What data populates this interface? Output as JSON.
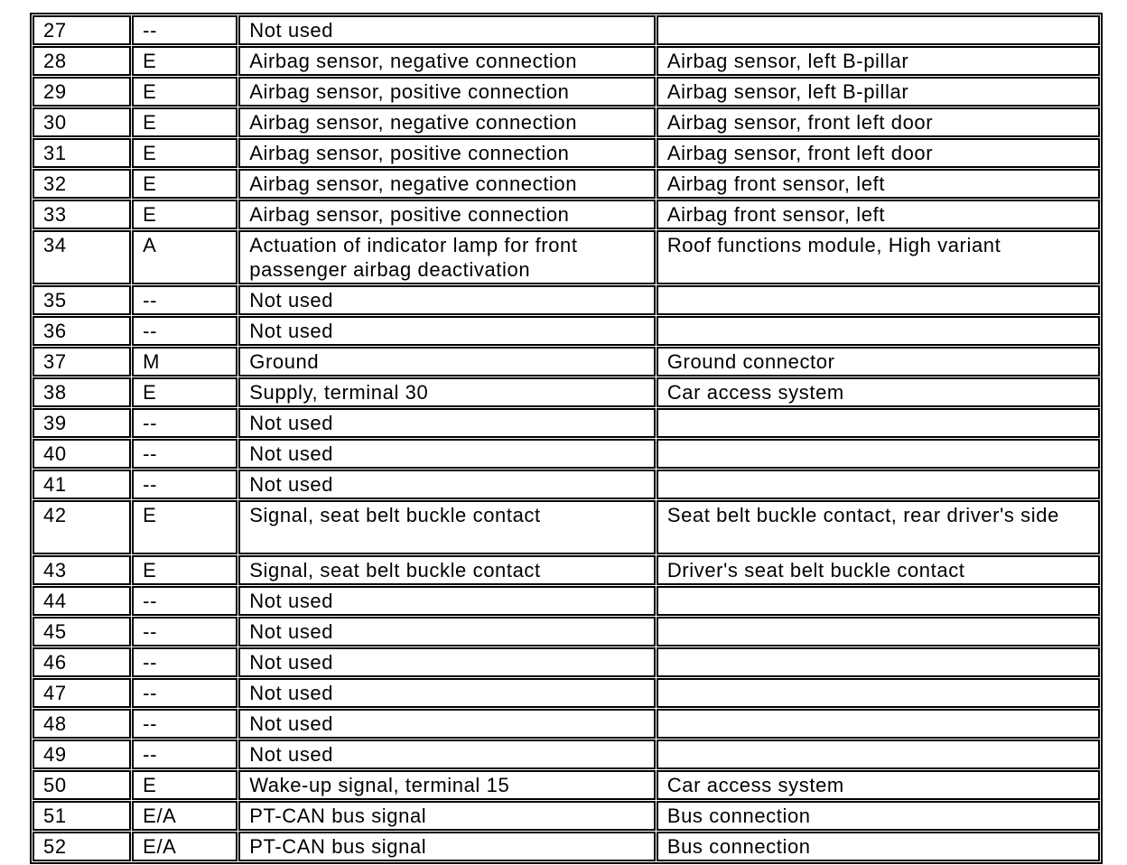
{
  "table": {
    "columns": [
      "pin",
      "type",
      "description",
      "component"
    ],
    "rows": [
      {
        "pin": "27",
        "type": "--",
        "description": "Not used",
        "component": "",
        "tall": false
      },
      {
        "pin": "28",
        "type": "E",
        "description": "Airbag sensor, negative connection",
        "component": "Airbag sensor, left B-pillar",
        "tall": false
      },
      {
        "pin": "29",
        "type": "E",
        "description": "Airbag sensor, positive connection",
        "component": "Airbag sensor, left B-pillar",
        "tall": false
      },
      {
        "pin": "30",
        "type": "E",
        "description": "Airbag sensor, negative connection",
        "component": "Airbag sensor, front left door",
        "tall": false
      },
      {
        "pin": "31",
        "type": "E",
        "description": "Airbag sensor, positive connection",
        "component": "Airbag sensor, front left door",
        "tall": false
      },
      {
        "pin": "32",
        "type": "E",
        "description": "Airbag sensor, negative connection",
        "component": "Airbag front sensor, left",
        "tall": false
      },
      {
        "pin": "33",
        "type": "E",
        "description": "Airbag sensor, positive connection",
        "component": "Airbag front sensor, left",
        "tall": false
      },
      {
        "pin": "34",
        "type": "A",
        "description": "Actuation of indicator lamp for front passenger airbag deactivation",
        "component": "Roof functions module, High variant",
        "tall": true
      },
      {
        "pin": "35",
        "type": "--",
        "description": "Not used",
        "component": "",
        "tall": false
      },
      {
        "pin": "36",
        "type": "--",
        "description": "Not used",
        "component": "",
        "tall": false
      },
      {
        "pin": "37",
        "type": "M",
        "description": "Ground",
        "component": "Ground connector",
        "tall": false
      },
      {
        "pin": "38",
        "type": "E",
        "description": "Supply, terminal 30",
        "component": "Car access system",
        "tall": false
      },
      {
        "pin": "39",
        "type": "--",
        "description": "Not used",
        "component": "",
        "tall": false
      },
      {
        "pin": "40",
        "type": "--",
        "description": "Not used",
        "component": "",
        "tall": false
      },
      {
        "pin": "41",
        "type": "--",
        "description": "Not used",
        "component": "",
        "tall": false
      },
      {
        "pin": "42",
        "type": "E",
        "description": "Signal, seat belt buckle contact",
        "component": "Seat belt buckle contact, rear driver's side",
        "tall": true
      },
      {
        "pin": "43",
        "type": "E",
        "description": "Signal, seat belt buckle contact",
        "component": "Driver's seat belt buckle contact",
        "tall": false
      },
      {
        "pin": "44",
        "type": "--",
        "description": "Not used",
        "component": "",
        "tall": false
      },
      {
        "pin": "45",
        "type": "--",
        "description": "Not used",
        "component": "",
        "tall": false
      },
      {
        "pin": "46",
        "type": "--",
        "description": "Not used",
        "component": "",
        "tall": false
      },
      {
        "pin": "47",
        "type": "--",
        "description": "Not used",
        "component": "",
        "tall": false
      },
      {
        "pin": "48",
        "type": "--",
        "description": "Not used",
        "component": "",
        "tall": false
      },
      {
        "pin": "49",
        "type": "--",
        "description": "Not used",
        "component": "",
        "tall": false
      },
      {
        "pin": "50",
        "type": "E",
        "description": "Wake-up signal, terminal 15",
        "component": "Car access system",
        "tall": false
      },
      {
        "pin": "51",
        "type": "E/A",
        "description": "PT-CAN bus signal",
        "component": "Bus connection",
        "tall": false
      },
      {
        "pin": "52",
        "type": "E/A",
        "description": "PT-CAN bus signal",
        "component": "Bus connection",
        "tall": false
      }
    ]
  },
  "colors": {
    "border": "#000000",
    "text": "#000000",
    "background": "#ffffff"
  }
}
